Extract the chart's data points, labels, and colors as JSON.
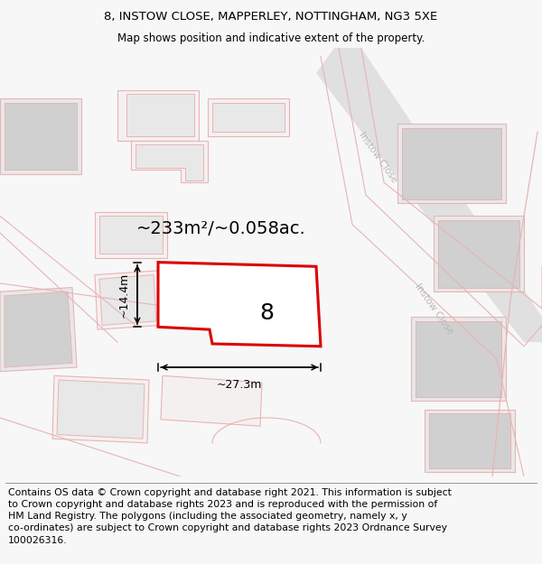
{
  "title_line1": "8, INSTOW CLOSE, MAPPERLEY, NOTTINGHAM, NG3 5XE",
  "title_line2": "Map shows position and indicative extent of the property.",
  "footer_text": "Contains OS data © Crown copyright and database right 2021. This information is subject\nto Crown copyright and database rights 2023 and is reproduced with the permission of\nHM Land Registry. The polygons (including the associated geometry, namely x, y\nco-ordinates) are subject to Crown copyright and database rights 2023 Ordnance Survey\n100026316.",
  "area_label": "~233m²/~0.058ac.",
  "width_label": "~27.3m",
  "height_label": "~14.4m",
  "property_number": "8",
  "road_label_diag1": "Instow Close",
  "road_label_diag2": "Instow Close",
  "bg_color": "#f7f7f7",
  "map_bg": "#ffffff",
  "pink_line": "#e8b4b4",
  "pink_fill": "#f5e8e8",
  "gray_fill": "#e8e8e8",
  "gray_dark": "#d0d0d0",
  "road_gray": "#e0e0e0",
  "road_label_color": "#b8b8b8",
  "red_color": "#dd0000",
  "black": "#000000",
  "title_fontsize": 9.5,
  "subtitle_fontsize": 8.5,
  "footer_fontsize": 7.8,
  "area_fontsize": 14,
  "dim_fontsize": 9,
  "number_fontsize": 18
}
